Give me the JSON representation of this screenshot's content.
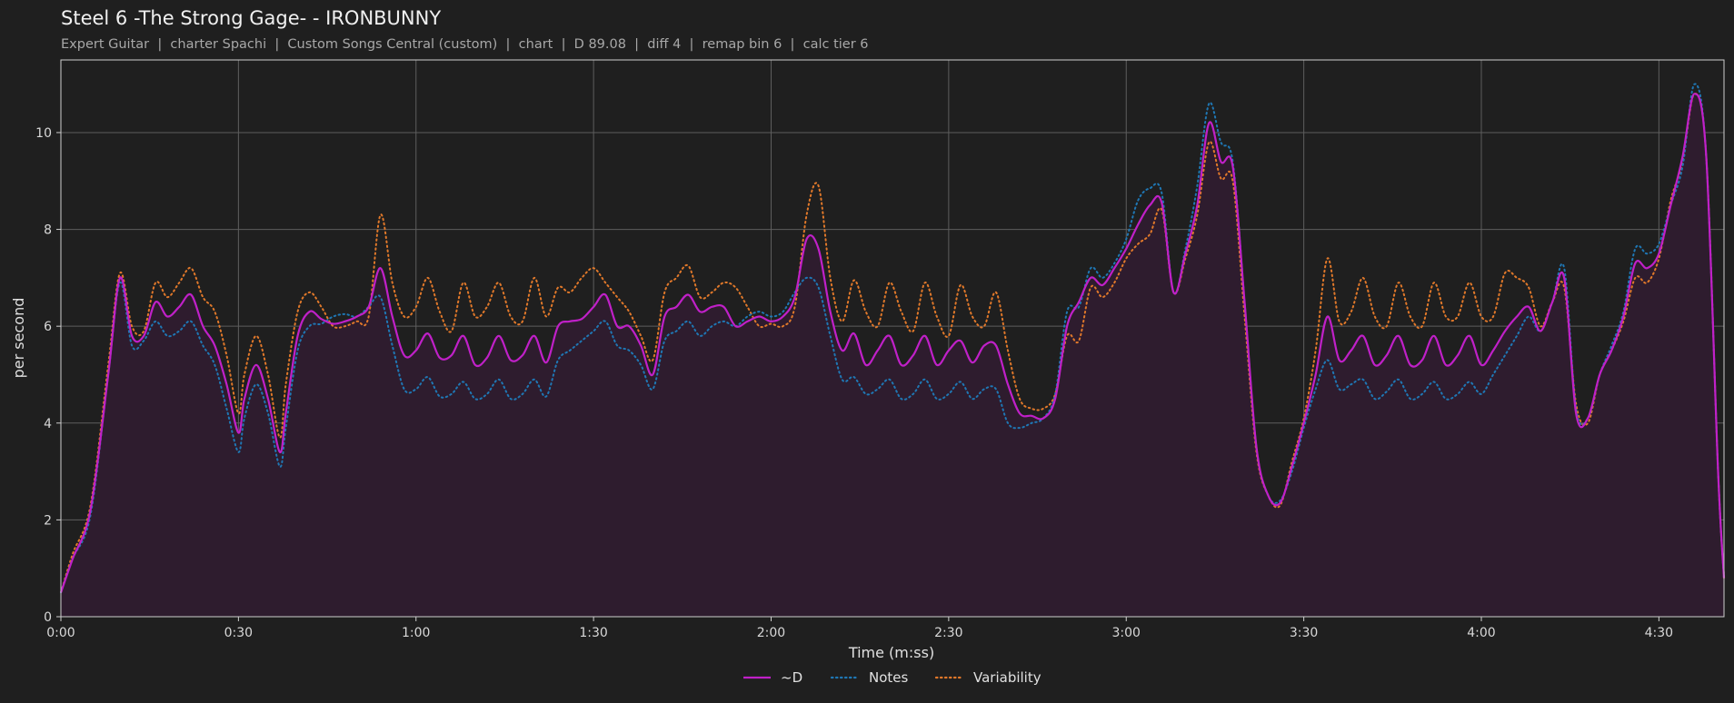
{
  "header": {
    "title": "Steel 6 -The Strong Gage- - IRONBUNNY",
    "subtitle": "Expert Guitar  |  charter Spachi  |  Custom Songs Central (custom)  |  chart  |  D 89.08  |  diff 4  |  remap bin 6  |  calc tier 6"
  },
  "colors": {
    "background": "#1f1f1f",
    "plot_border": "#cfcfcf",
    "grid": "#5e5e5e",
    "fill": "#2e1c2e",
    "d_line": "#c020c8",
    "notes_line": "#1f77b4",
    "variability_line": "#e0782a"
  },
  "chart_data": {
    "type": "line",
    "xlabel": "Time (m:ss)",
    "ylabel": "per second",
    "xlim": [
      0,
      281
    ],
    "ylim": [
      0,
      11.5
    ],
    "grid": true,
    "legend_position": "bottom-center",
    "x_ticks": [
      {
        "value": 0,
        "label": "0:00"
      },
      {
        "value": 30,
        "label": "0:30"
      },
      {
        "value": 60,
        "label": "1:00"
      },
      {
        "value": 90,
        "label": "1:30"
      },
      {
        "value": 120,
        "label": "2:00"
      },
      {
        "value": 150,
        "label": "2:30"
      },
      {
        "value": 180,
        "label": "3:00"
      },
      {
        "value": 210,
        "label": "3:30"
      },
      {
        "value": 240,
        "label": "4:00"
      },
      {
        "value": 270,
        "label": "4:30"
      }
    ],
    "y_ticks": [
      {
        "value": 0,
        "label": "0"
      },
      {
        "value": 2,
        "label": "2"
      },
      {
        "value": 4,
        "label": "4"
      },
      {
        "value": 6,
        "label": "6"
      },
      {
        "value": 8,
        "label": "8"
      },
      {
        "value": 10,
        "label": "10"
      }
    ],
    "series": [
      {
        "name": "~D",
        "style": "solid",
        "x": [
          0,
          2,
          5,
          8,
          10,
          12,
          14,
          16,
          18,
          20,
          22,
          24,
          26,
          28,
          30,
          31,
          33,
          35,
          37,
          38,
          40,
          42,
          44,
          46,
          48,
          50,
          52,
          54,
          56,
          58,
          60,
          62,
          64,
          66,
          68,
          70,
          72,
          74,
          76,
          78,
          80,
          82,
          84,
          86,
          88,
          90,
          92,
          94,
          96,
          98,
          100,
          102,
          104,
          106,
          108,
          110,
          112,
          114,
          116,
          118,
          120,
          122,
          124,
          126,
          128,
          130,
          132,
          134,
          136,
          138,
          140,
          142,
          144,
          146,
          148,
          150,
          152,
          154,
          156,
          158,
          160,
          162,
          164,
          166,
          168,
          170,
          172,
          174,
          176,
          178,
          180,
          182,
          184,
          186,
          188,
          190,
          192,
          194,
          196,
          198,
          200,
          202,
          204,
          206,
          208,
          210,
          212,
          214,
          216,
          218,
          220,
          222,
          224,
          226,
          228,
          230,
          232,
          234,
          236,
          238,
          240,
          242,
          244,
          246,
          248,
          250,
          252,
          254,
          256,
          258,
          260,
          262,
          264,
          266,
          268,
          270,
          272,
          274,
          276,
          278,
          280,
          281
        ],
        "y": [
          0.5,
          1.2,
          2.2,
          5.0,
          7.0,
          5.8,
          5.8,
          6.5,
          6.2,
          6.4,
          6.65,
          6.0,
          5.6,
          4.8,
          3.8,
          4.5,
          5.2,
          4.5,
          3.4,
          4.2,
          5.8,
          6.3,
          6.15,
          6.05,
          6.1,
          6.2,
          6.4,
          7.2,
          6.2,
          5.4,
          5.5,
          5.85,
          5.35,
          5.4,
          5.8,
          5.2,
          5.35,
          5.8,
          5.3,
          5.4,
          5.8,
          5.25,
          6.0,
          6.1,
          6.15,
          6.4,
          6.65,
          6.0,
          6.0,
          5.6,
          5.0,
          6.2,
          6.4,
          6.65,
          6.3,
          6.4,
          6.4,
          6.0,
          6.1,
          6.2,
          6.1,
          6.2,
          6.6,
          7.8,
          7.6,
          6.3,
          5.5,
          5.85,
          5.2,
          5.5,
          5.8,
          5.2,
          5.4,
          5.8,
          5.2,
          5.5,
          5.7,
          5.25,
          5.6,
          5.6,
          4.8,
          4.2,
          4.15,
          4.1,
          4.5,
          6.0,
          6.5,
          7.0,
          6.85,
          7.2,
          7.6,
          8.1,
          8.5,
          8.55,
          6.7,
          7.5,
          8.5,
          10.2,
          9.4,
          9.3,
          6.5,
          3.5,
          2.5,
          2.35,
          3.1,
          4.0,
          5.0,
          6.2,
          5.3,
          5.5,
          5.8,
          5.2,
          5.4,
          5.8,
          5.2,
          5.3,
          5.8,
          5.2,
          5.4,
          5.8,
          5.2,
          5.5,
          5.9,
          6.2,
          6.4,
          5.9,
          6.5,
          7.0,
          4.2,
          4.1,
          5.0,
          5.5,
          6.2,
          7.3,
          7.2,
          7.5,
          8.5,
          9.5,
          10.8,
          9.5,
          3.0,
          0.8
        ]
      },
      {
        "name": "Notes",
        "style": "dotted",
        "x": [
          0,
          2,
          5,
          8,
          10,
          12,
          14,
          16,
          18,
          20,
          22,
          24,
          26,
          28,
          30,
          31,
          33,
          35,
          37,
          38,
          40,
          42,
          44,
          46,
          48,
          50,
          52,
          54,
          56,
          58,
          60,
          62,
          64,
          66,
          68,
          70,
          72,
          74,
          76,
          78,
          80,
          82,
          84,
          86,
          88,
          90,
          92,
          94,
          96,
          98,
          100,
          102,
          104,
          106,
          108,
          110,
          112,
          114,
          116,
          118,
          120,
          122,
          124,
          126,
          128,
          130,
          132,
          134,
          136,
          138,
          140,
          142,
          144,
          146,
          148,
          150,
          152,
          154,
          156,
          158,
          160,
          162,
          164,
          166,
          168,
          170,
          172,
          174,
          176,
          178,
          180,
          182,
          184,
          186,
          188,
          190,
          192,
          194,
          196,
          198,
          200,
          202,
          204,
          206,
          208,
          210,
          212,
          214,
          216,
          218,
          220,
          222,
          224,
          226,
          228,
          230,
          232,
          234,
          236,
          238,
          240,
          242,
          244,
          246,
          248,
          250,
          252,
          254,
          256,
          258,
          260,
          262,
          264,
          266,
          268,
          270,
          272,
          274,
          276,
          278,
          280,
          281
        ],
        "y": [
          0.5,
          1.2,
          2.1,
          5.0,
          6.9,
          5.6,
          5.7,
          6.1,
          5.8,
          5.9,
          6.1,
          5.6,
          5.2,
          4.3,
          3.4,
          4.1,
          4.8,
          4.2,
          3.1,
          3.9,
          5.5,
          6.0,
          6.05,
          6.2,
          6.25,
          6.2,
          6.4,
          6.6,
          5.6,
          4.7,
          4.7,
          4.95,
          4.55,
          4.6,
          4.85,
          4.5,
          4.6,
          4.9,
          4.5,
          4.6,
          4.9,
          4.55,
          5.3,
          5.5,
          5.7,
          5.9,
          6.1,
          5.6,
          5.5,
          5.2,
          4.7,
          5.7,
          5.9,
          6.1,
          5.8,
          6.0,
          6.1,
          6.0,
          6.2,
          6.3,
          6.2,
          6.3,
          6.7,
          7.0,
          6.8,
          5.8,
          4.9,
          4.95,
          4.6,
          4.7,
          4.9,
          4.5,
          4.6,
          4.9,
          4.5,
          4.6,
          4.85,
          4.5,
          4.7,
          4.7,
          4.0,
          3.9,
          4.0,
          4.1,
          4.6,
          6.3,
          6.4,
          7.2,
          7.0,
          7.3,
          7.8,
          8.6,
          8.85,
          8.75,
          6.7,
          7.6,
          8.9,
          10.6,
          9.8,
          9.4,
          6.5,
          3.5,
          2.5,
          2.4,
          3.0,
          3.9,
          4.7,
          5.3,
          4.7,
          4.8,
          4.9,
          4.5,
          4.65,
          4.9,
          4.5,
          4.6,
          4.85,
          4.5,
          4.6,
          4.85,
          4.6,
          5.0,
          5.4,
          5.8,
          6.2,
          5.9,
          6.5,
          7.2,
          4.3,
          4.1,
          5.0,
          5.6,
          6.3,
          7.6,
          7.5,
          7.7,
          8.5,
          9.3,
          11.0,
          9.5,
          3.0,
          0.8
        ]
      },
      {
        "name": "Variability",
        "style": "dotted",
        "x": [
          0,
          2,
          5,
          8,
          10,
          12,
          14,
          16,
          18,
          20,
          22,
          24,
          26,
          28,
          30,
          31,
          33,
          35,
          37,
          38,
          40,
          42,
          44,
          46,
          48,
          50,
          52,
          54,
          56,
          58,
          60,
          62,
          64,
          66,
          68,
          70,
          72,
          74,
          76,
          78,
          80,
          82,
          84,
          86,
          88,
          90,
          92,
          94,
          96,
          98,
          100,
          102,
          104,
          106,
          108,
          110,
          112,
          114,
          116,
          118,
          120,
          122,
          124,
          126,
          128,
          130,
          132,
          134,
          136,
          138,
          140,
          142,
          144,
          146,
          148,
          150,
          152,
          154,
          156,
          158,
          160,
          162,
          164,
          166,
          168,
          170,
          172,
          174,
          176,
          178,
          180,
          182,
          184,
          186,
          188,
          190,
          192,
          194,
          196,
          198,
          200,
          202,
          204,
          206,
          208,
          210,
          212,
          214,
          216,
          218,
          220,
          222,
          224,
          226,
          228,
          230,
          232,
          234,
          236,
          238,
          240,
          242,
          244,
          246,
          248,
          250,
          252,
          254,
          256,
          258,
          260,
          262,
          264,
          266,
          268,
          270,
          272,
          274,
          276,
          278,
          280,
          281
        ],
        "y": [
          0.5,
          1.3,
          2.3,
          5.2,
          7.1,
          6.0,
          5.9,
          6.9,
          6.6,
          6.9,
          7.2,
          6.6,
          6.3,
          5.4,
          4.2,
          5.0,
          5.8,
          5.0,
          3.7,
          4.8,
          6.3,
          6.7,
          6.4,
          6.0,
          6.0,
          6.1,
          6.2,
          8.3,
          6.9,
          6.2,
          6.4,
          7.0,
          6.3,
          5.9,
          6.9,
          6.2,
          6.4,
          6.9,
          6.2,
          6.1,
          7.0,
          6.2,
          6.8,
          6.7,
          7.0,
          7.2,
          6.9,
          6.6,
          6.3,
          5.8,
          5.3,
          6.7,
          7.0,
          7.25,
          6.6,
          6.7,
          6.9,
          6.8,
          6.4,
          6.0,
          6.05,
          6.0,
          6.4,
          8.3,
          8.9,
          7.0,
          6.1,
          6.95,
          6.3,
          6.0,
          6.9,
          6.3,
          5.9,
          6.9,
          6.2,
          5.8,
          6.85,
          6.2,
          6.0,
          6.7,
          5.5,
          4.5,
          4.3,
          4.3,
          4.6,
          5.8,
          5.7,
          6.8,
          6.6,
          6.9,
          7.4,
          7.7,
          7.9,
          8.4,
          6.7,
          7.4,
          8.3,
          9.8,
          9.05,
          9.0,
          6.2,
          3.4,
          2.5,
          2.3,
          3.2,
          4.1,
          5.5,
          7.4,
          6.1,
          6.3,
          7.0,
          6.2,
          6.0,
          6.9,
          6.2,
          6.0,
          6.9,
          6.2,
          6.2,
          6.9,
          6.2,
          6.2,
          7.1,
          7.0,
          6.8,
          6.0,
          6.5,
          6.8,
          4.4,
          4.0,
          5.0,
          5.5,
          6.1,
          7.0,
          6.9,
          7.4,
          8.6,
          9.4,
          10.8,
          9.5,
          3.0,
          0.8
        ]
      }
    ]
  }
}
